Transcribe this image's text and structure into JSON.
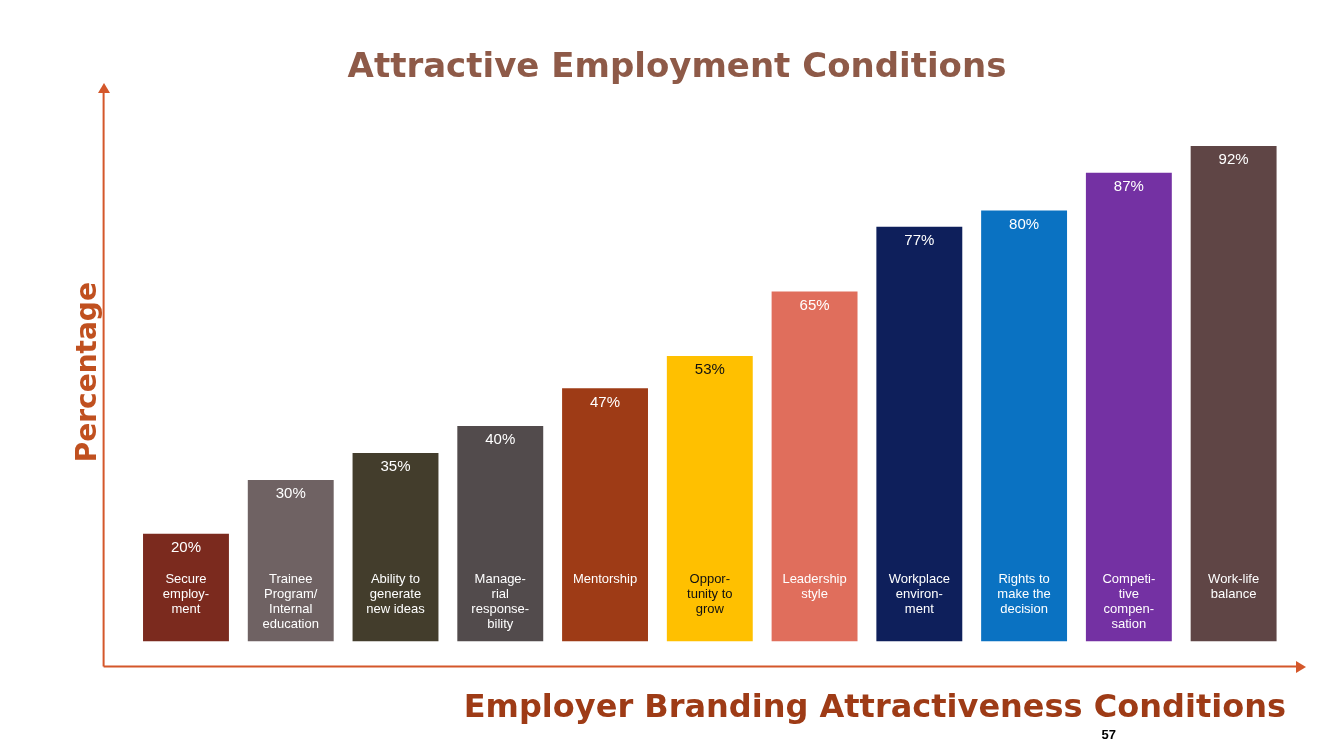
{
  "chart_data": {
    "type": "bar",
    "title": "Attractive Employment Conditions",
    "xlabel": "Employer Branding Attractiveness Conditions",
    "ylabel": "Percentage",
    "categories": [
      "Secure\nemploy-\nment",
      "Trainee\nProgram/\nInternal\neducation",
      "Ability to\ngenerate\nnew ideas",
      "Manage-\nrial\nresponse-\nbility",
      "Mentorship",
      "Oppor-\ntunity to\ngrow",
      "Leadership\nstyle",
      "Workplace\nenviron-\nment",
      "Rights to\nmake the\ndecision",
      "Competi-\ntive\ncompen-\nsation",
      "Work-life\nbalance"
    ],
    "values": [
      20,
      30,
      35,
      40,
      47,
      53,
      65,
      77,
      80,
      87,
      92
    ],
    "value_labels": [
      "20%",
      "30%",
      "35%",
      "40%",
      "47%",
      "53%",
      "65%",
      "77%",
      "80%",
      "87%",
      "92%"
    ],
    "colors": [
      "#7b2a1e",
      "#6f6263",
      "#433d2c",
      "#524b4c",
      "#9e3b16",
      "#ffc000",
      "#e06e5c",
      "#0e1f5b",
      "#0a72c2",
      "#7431a3",
      "#5f4545"
    ],
    "grid": false,
    "legend": false,
    "annotations": [
      "57"
    ]
  }
}
